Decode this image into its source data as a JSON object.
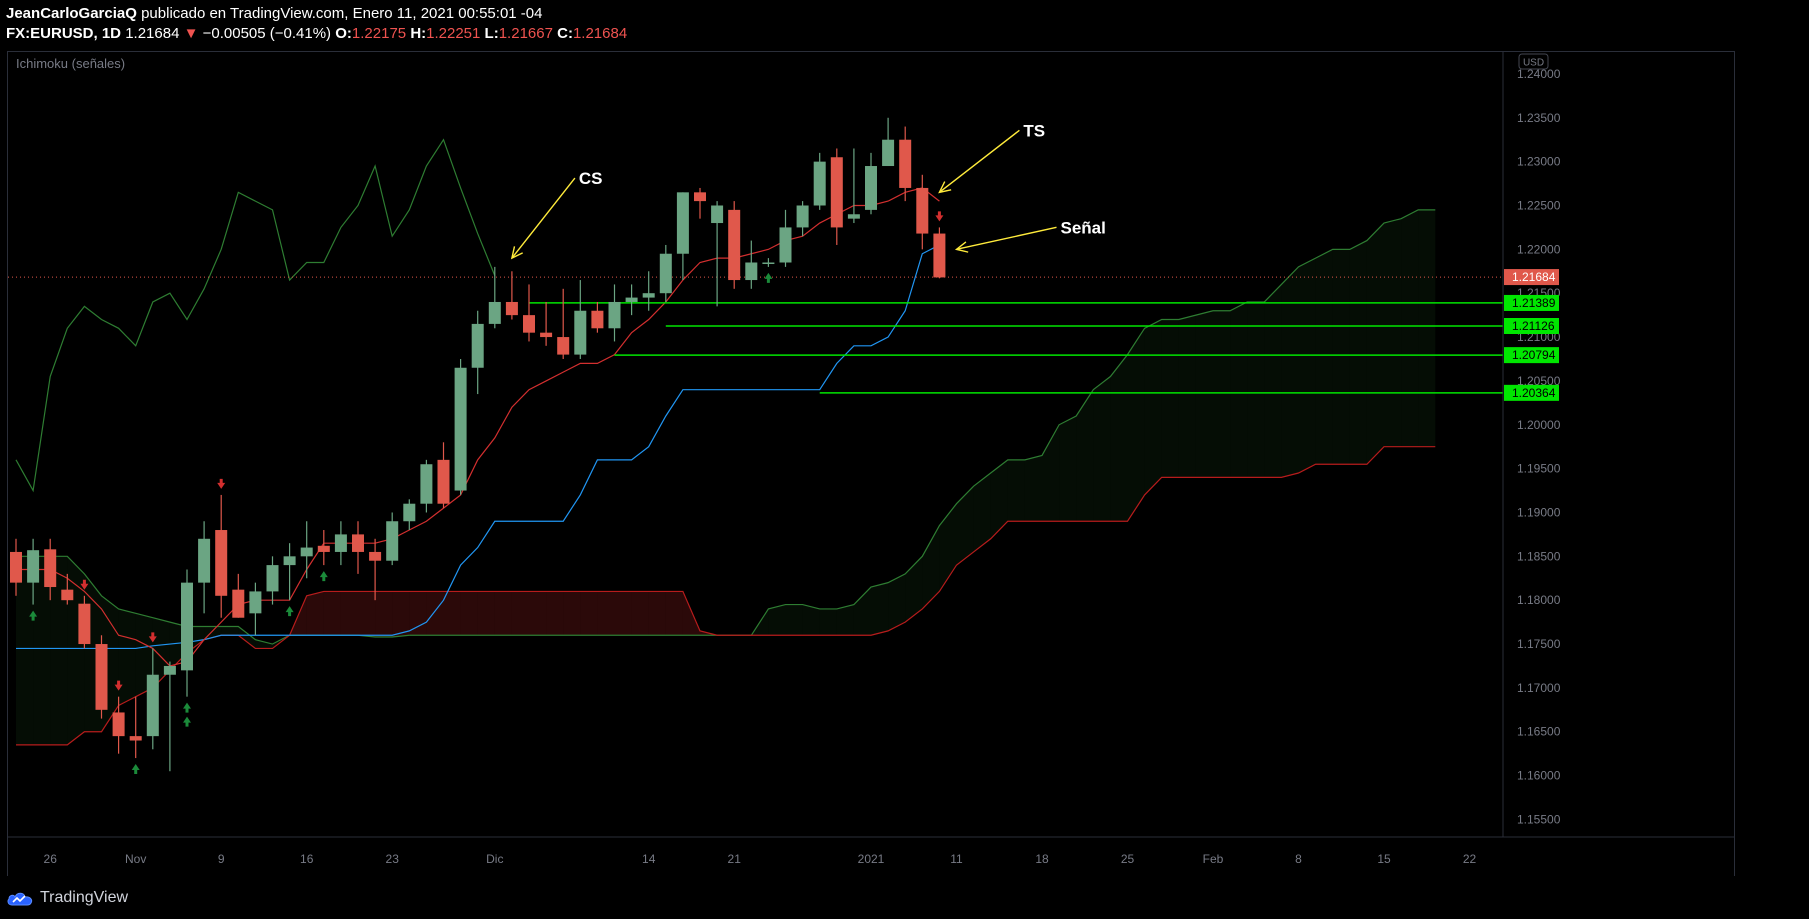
{
  "header": {
    "author": "JeanCarloGarciaQ",
    "published_text": "publicado en TradingView.com, Enero 11, 2021 00:55:01 -04",
    "symbol": "FX:EURUSD, 1D",
    "last": "1.21684",
    "arrow": "▼",
    "change": "−0.00505 (−0.41%)",
    "o_label": "O:",
    "o_value": "1.22175",
    "h_label": "H:",
    "h_value": "1.22251",
    "l_label": "L:",
    "l_value": "1.21667",
    "c_label": "C:",
    "c_value": "1.21684"
  },
  "indicator_label": "Ichimoku (señales)",
  "currency_badge": "USD",
  "footer": {
    "brand": "TradingView"
  },
  "colors": {
    "up": "#6ba583",
    "down": "#e0584b",
    "tenkan": "#d32f2f",
    "kijun": "#2196f3",
    "chikou": "#2e7d32",
    "level": "#00e600",
    "annotation": "#ffeb3b"
  },
  "chart_data": {
    "type": "candlestick",
    "symbol": "FX:EURUSD",
    "timeframe": "1D",
    "ylim": [
      1.153,
      1.2425
    ],
    "y_ticks": [
      "1.24000",
      "1.23500",
      "1.23000",
      "1.22500",
      "1.22000",
      "1.21500",
      "1.21000",
      "1.20500",
      "1.20000",
      "1.19500",
      "1.19000",
      "1.18500",
      "1.18000",
      "1.17500",
      "1.17000",
      "1.16500",
      "1.16000",
      "1.15500"
    ],
    "y_tick_values": [
      1.24,
      1.235,
      1.23,
      1.225,
      1.22,
      1.215,
      1.21,
      1.205,
      1.2,
      1.195,
      1.19,
      1.185,
      1.18,
      1.175,
      1.17,
      1.165,
      1.16,
      1.155
    ],
    "x_ticks": [
      {
        "label": "26",
        "i": 2
      },
      {
        "label": "Nov",
        "i": 7
      },
      {
        "label": "9",
        "i": 12
      },
      {
        "label": "16",
        "i": 17
      },
      {
        "label": "23",
        "i": 22
      },
      {
        "label": "Dic",
        "i": 28
      },
      {
        "label": "14",
        "i": 37
      },
      {
        "label": "21",
        "i": 42
      },
      {
        "label": "2021",
        "i": 50
      },
      {
        "label": "11",
        "i": 55
      },
      {
        "label": "18",
        "i": 60
      },
      {
        "label": "25",
        "i": 65
      },
      {
        "label": "Feb",
        "i": 70
      },
      {
        "label": "8",
        "i": 75
      },
      {
        "label": "15",
        "i": 80
      },
      {
        "label": "22",
        "i": 85
      }
    ],
    "candles": [
      [
        1.1855,
        1.187,
        1.1805,
        1.182
      ],
      [
        1.182,
        1.187,
        1.1795,
        1.1857
      ],
      [
        1.1858,
        1.187,
        1.18,
        1.1815
      ],
      [
        1.1812,
        1.183,
        1.1795,
        1.18
      ],
      [
        1.1796,
        1.1805,
        1.1745,
        1.175
      ],
      [
        1.175,
        1.176,
        1.1665,
        1.1675
      ],
      [
        1.1672,
        1.169,
        1.1625,
        1.1645
      ],
      [
        1.1645,
        1.169,
        1.162,
        1.164
      ],
      [
        1.1645,
        1.1745,
        1.163,
        1.1715
      ],
      [
        1.1715,
        1.173,
        1.1605,
        1.1725
      ],
      [
        1.172,
        1.1835,
        1.169,
        1.182
      ],
      [
        1.182,
        1.189,
        1.1785,
        1.187
      ],
      [
        1.188,
        1.192,
        1.178,
        1.1805
      ],
      [
        1.1812,
        1.183,
        1.178,
        1.178
      ],
      [
        1.1785,
        1.182,
        1.176,
        1.181
      ],
      [
        1.181,
        1.185,
        1.1795,
        1.184
      ],
      [
        1.184,
        1.1865,
        1.18,
        1.185
      ],
      [
        1.185,
        1.189,
        1.1825,
        1.186
      ],
      [
        1.1862,
        1.188,
        1.184,
        1.1855
      ],
      [
        1.1855,
        1.189,
        1.184,
        1.1875
      ],
      [
        1.1875,
        1.189,
        1.183,
        1.1855
      ],
      [
        1.1855,
        1.187,
        1.18,
        1.1845
      ],
      [
        1.1845,
        1.19,
        1.184,
        1.189
      ],
      [
        1.189,
        1.1915,
        1.188,
        1.191
      ],
      [
        1.191,
        1.196,
        1.19,
        1.1955
      ],
      [
        1.196,
        1.198,
        1.1905,
        1.191
      ],
      [
        1.1925,
        1.2075,
        1.192,
        1.2065
      ],
      [
        1.2065,
        1.213,
        1.2035,
        1.2115
      ],
      [
        1.2115,
        1.218,
        1.211,
        1.214
      ],
      [
        1.214,
        1.2175,
        1.212,
        1.2125
      ],
      [
        1.2125,
        1.216,
        1.2095,
        1.2105
      ],
      [
        1.2105,
        1.214,
        1.209,
        1.21
      ],
      [
        1.21,
        1.2155,
        1.2075,
        1.208
      ],
      [
        1.208,
        1.2165,
        1.2075,
        1.213
      ],
      [
        1.213,
        1.214,
        1.2105,
        1.211
      ],
      [
        1.211,
        1.216,
        1.2095,
        1.214
      ],
      [
        1.214,
        1.216,
        1.2125,
        1.2145
      ],
      [
        1.2145,
        1.2175,
        1.213,
        1.215
      ],
      [
        1.215,
        1.2205,
        1.214,
        1.2195
      ],
      [
        1.2195,
        1.2265,
        1.2165,
        1.2265
      ],
      [
        1.2265,
        1.227,
        1.2235,
        1.2255
      ],
      [
        1.223,
        1.2255,
        1.2135,
        1.225
      ],
      [
        1.2245,
        1.2255,
        1.2155,
        1.2165
      ],
      [
        1.2165,
        1.221,
        1.2155,
        1.2185
      ],
      [
        1.2185,
        1.219,
        1.218,
        1.2185
      ],
      [
        1.2185,
        1.2245,
        1.218,
        1.2225
      ],
      [
        1.2225,
        1.2255,
        1.2215,
        1.225
      ],
      [
        1.225,
        1.231,
        1.2245,
        1.23
      ],
      [
        1.2305,
        1.2315,
        1.2205,
        1.2225
      ],
      [
        1.2235,
        1.2315,
        1.223,
        1.224
      ],
      [
        1.2245,
        1.231,
        1.224,
        1.2295
      ],
      [
        1.2295,
        1.235,
        1.2295,
        1.2325
      ],
      [
        1.2325,
        1.234,
        1.2255,
        1.227
      ],
      [
        1.227,
        1.2285,
        1.22,
        1.2218
      ],
      [
        1.2218,
        1.2225,
        1.2167,
        1.2168
      ]
    ],
    "tenkan_sen": [
      1.1835,
      1.1835,
      1.1835,
      1.1825,
      1.181,
      1.179,
      1.176,
      1.1755,
      1.1745,
      1.1725,
      1.173,
      1.1755,
      1.1775,
      1.1795,
      1.18,
      1.18,
      1.18,
      1.1835,
      1.1865,
      1.1865,
      1.1865,
      1.1865,
      1.187,
      1.188,
      1.189,
      1.1905,
      1.192,
      1.196,
      1.1985,
      1.202,
      1.204,
      1.205,
      1.206,
      1.207,
      1.207,
      1.208,
      1.2105,
      1.212,
      1.214,
      1.2165,
      1.2185,
      1.219,
      1.219,
      1.2195,
      1.22,
      1.221,
      1.2215,
      1.223,
      1.224,
      1.225,
      1.225,
      1.2255,
      1.2265,
      1.227,
      1.2255
    ],
    "kijun_sen": [
      1.1745,
      1.1745,
      1.1745,
      1.1745,
      1.1745,
      1.1745,
      1.1745,
      1.1745,
      1.1748,
      1.175,
      1.1752,
      1.1755,
      1.176,
      1.176,
      1.176,
      1.176,
      1.176,
      1.176,
      1.176,
      1.176,
      1.176,
      1.176,
      1.176,
      1.1765,
      1.1775,
      1.18,
      1.184,
      1.186,
      1.189,
      1.189,
      1.189,
      1.189,
      1.189,
      1.192,
      1.196,
      1.196,
      1.196,
      1.1975,
      1.201,
      1.204,
      1.204,
      1.204,
      1.204,
      1.204,
      1.204,
      1.204,
      1.204,
      1.204,
      1.207,
      1.209,
      1.209,
      1.21,
      1.213,
      1.2195,
      1.2205
    ],
    "chikou_span": {
      "start": 0,
      "values": [
        1.196,
        1.1925,
        1.2055,
        1.211,
        1.2135,
        1.212,
        1.211,
        1.209,
        1.214,
        1.215,
        1.212,
        1.2155,
        1.22,
        1.2265,
        1.2255,
        1.2245,
        1.2165,
        1.2185,
        1.2185,
        1.2225,
        1.225,
        1.2295,
        1.2215,
        1.2245,
        1.2295,
        1.2325,
        1.227,
        1.2218,
        1.217
      ]
    },
    "senkou_span_a": {
      "start": 0,
      "values": [
        1.185,
        1.185,
        1.185,
        1.185,
        1.183,
        1.1805,
        1.179,
        1.1785,
        1.178,
        1.1775,
        1.177,
        1.177,
        1.177,
        1.177,
        1.1755,
        1.175,
        1.176,
        1.176,
        1.176,
        1.176,
        1.176,
        1.1758,
        1.1758,
        1.176,
        1.176,
        1.176,
        1.176,
        1.176,
        1.176,
        1.176,
        1.176,
        1.176,
        1.176,
        1.176,
        1.176,
        1.176,
        1.176,
        1.176,
        1.176,
        1.176,
        1.176,
        1.176,
        1.176,
        1.176,
        1.179,
        1.1795,
        1.1795,
        1.179,
        1.179,
        1.1795,
        1.1815,
        1.182,
        1.183,
        1.185,
        1.1885,
        1.191,
        1.193,
        1.1945,
        1.196,
        1.196,
        1.1965,
        1.2,
        1.201,
        1.204,
        1.2055,
        1.208,
        1.211,
        1.212,
        1.212,
        1.2125,
        1.213,
        1.213,
        1.214,
        1.214,
        1.216,
        1.218,
        1.219,
        1.22,
        1.22,
        1.221,
        1.223,
        1.2235,
        1.2245,
        1.2245
      ]
    },
    "senkou_span_b": {
      "start": 0,
      "values": [
        1.1635,
        1.1635,
        1.1635,
        1.1635,
        1.165,
        1.165,
        1.168,
        1.169,
        1.17,
        1.172,
        1.174,
        1.1755,
        1.176,
        1.176,
        1.1745,
        1.1745,
        1.176,
        1.1805,
        1.181,
        1.181,
        1.181,
        1.181,
        1.181,
        1.181,
        1.181,
        1.181,
        1.181,
        1.181,
        1.181,
        1.181,
        1.181,
        1.181,
        1.181,
        1.181,
        1.181,
        1.181,
        1.181,
        1.181,
        1.181,
        1.181,
        1.1765,
        1.176,
        1.176,
        1.176,
        1.176,
        1.176,
        1.176,
        1.176,
        1.176,
        1.176,
        1.176,
        1.1765,
        1.1775,
        1.179,
        1.181,
        1.184,
        1.1855,
        1.187,
        1.189,
        1.189,
        1.189,
        1.189,
        1.189,
        1.189,
        1.189,
        1.189,
        1.192,
        1.194,
        1.194,
        1.194,
        1.194,
        1.194,
        1.194,
        1.194,
        1.194,
        1.1945,
        1.1955,
        1.1955,
        1.1955,
        1.1955,
        1.1975,
        1.1975,
        1.1975,
        1.1975
      ]
    },
    "horizontal_levels": [
      {
        "label": "1.21389",
        "value": 1.21389,
        "start": 30
      },
      {
        "label": "1.21126",
        "value": 1.21126,
        "start": 38
      },
      {
        "label": "1.20794",
        "value": 1.20794,
        "start": 35
      },
      {
        "label": "1.20364",
        "value": 1.20364,
        "start": 47
      }
    ],
    "last_price": {
      "label": "1.21684",
      "value": 1.21684
    },
    "signals": [
      {
        "type": "up",
        "i": 1
      },
      {
        "type": "down",
        "i": 4
      },
      {
        "type": "down",
        "i": 6
      },
      {
        "type": "up",
        "i": 7
      },
      {
        "type": "down",
        "i": 8
      },
      {
        "type": "up",
        "i": 10
      },
      {
        "type": "up",
        "i": 10
      },
      {
        "type": "down",
        "i": 12
      },
      {
        "type": "up",
        "i": 16
      },
      {
        "type": "up",
        "i": 18
      },
      {
        "type": "up",
        "i": 44
      },
      {
        "type": "down",
        "i": 54
      }
    ],
    "annotations": [
      {
        "text": "CS",
        "target_i": 29,
        "target_value": 1.219
      },
      {
        "text": "TS",
        "target_i": 54,
        "target_value": 1.2265
      },
      {
        "text": "Señal",
        "target_i": 55,
        "target_value": 1.22
      }
    ]
  }
}
